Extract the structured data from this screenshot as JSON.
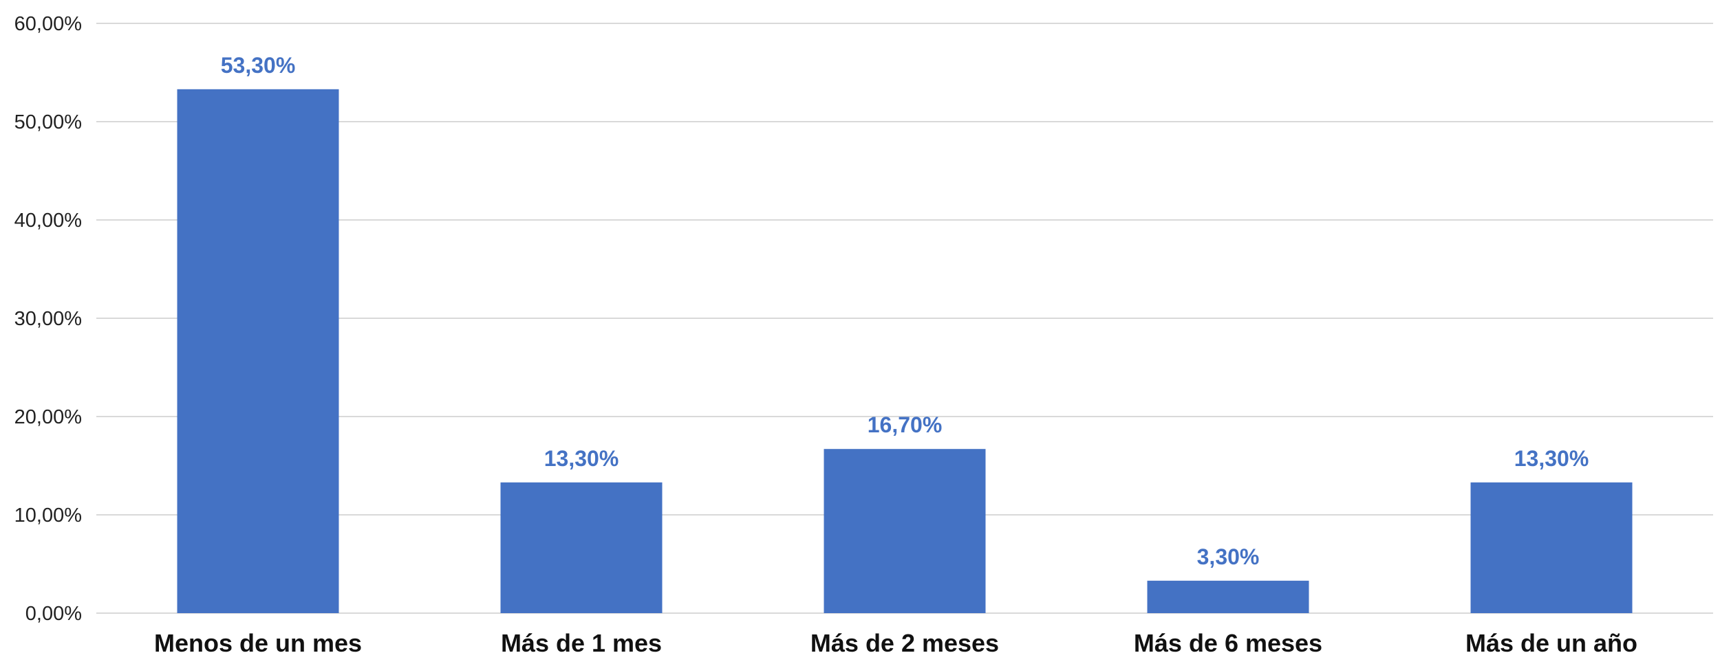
{
  "chart_data": {
    "type": "bar",
    "title": "",
    "xlabel": "",
    "ylabel": "",
    "categories": [
      "Menos de un mes",
      "Más de 1 mes",
      "Más de 2 meses",
      "Más de 6 meses",
      "Más de un año"
    ],
    "values": [
      53.3,
      13.3,
      16.7,
      3.3,
      13.3
    ],
    "data_labels": [
      "53,30%",
      "13,30%",
      "16,70%",
      "3,30%",
      "13,30%"
    ],
    "ylim": [
      0,
      60
    ],
    "y_ticks": [
      0,
      10,
      20,
      30,
      40,
      50,
      60
    ],
    "y_tick_labels": [
      "0,00%",
      "10,00%",
      "20,00%",
      "30,00%",
      "40,00%",
      "50,00%",
      "60,00%"
    ],
    "grid": true,
    "legend": "none",
    "colors": {
      "bar": "#4472c4",
      "data_label": "#4472c4",
      "grid": "#d9d9d9"
    }
  }
}
